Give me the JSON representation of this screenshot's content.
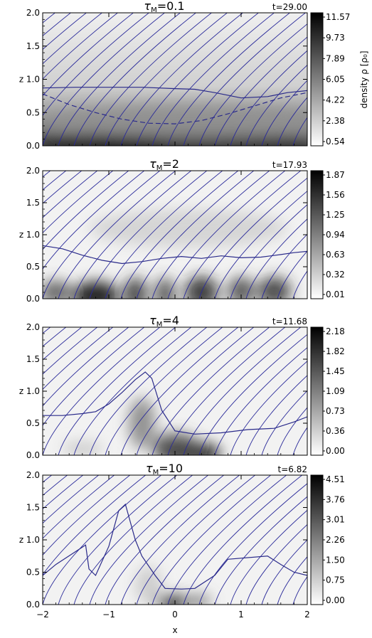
{
  "figure": {
    "x_label": "x",
    "y_label": "z",
    "colorbar_label": "density ρ [ρ₀]"
  },
  "panels": [
    {
      "title": "τ_M=0.1",
      "title_sym": "τ",
      "title_sub": "M",
      "title_val": "=0.1",
      "time": "t=29.00",
      "colorbar_ticks": [
        "11.57",
        "9.73",
        "7.89",
        "6.05",
        "4.22",
        "2.38",
        "0.54"
      ]
    },
    {
      "title": "τ_M=2",
      "title_sym": "τ",
      "title_sub": "M",
      "title_val": "=2",
      "time": "t=17.93",
      "colorbar_ticks": [
        "1.87",
        "1.56",
        "1.25",
        "0.94",
        "0.63",
        "0.32",
        "0.01"
      ]
    },
    {
      "title": "τ_M=4",
      "title_sym": "τ",
      "title_sub": "M",
      "title_val": "=4",
      "time": "t=11.68",
      "colorbar_ticks": [
        "2.18",
        "1.82",
        "1.45",
        "1.09",
        "0.73",
        "0.36",
        "0.00"
      ]
    },
    {
      "title": "τ_M=10",
      "title_sym": "τ",
      "title_sub": "M",
      "title_val": "=10",
      "time": "t=6.82",
      "colorbar_ticks": [
        "4.51",
        "3.76",
        "3.01",
        "2.26",
        "1.50",
        "0.75",
        "0.00"
      ]
    }
  ],
  "chart_data": {
    "type": "heatmap",
    "xlim": [
      -2,
      2
    ],
    "ylim": [
      0,
      2
    ],
    "x_ticks": [
      "−2",
      "−1",
      "0",
      "1",
      "2"
    ],
    "y_ticks": [
      "0.0",
      "0.5",
      "1.0",
      "1.5",
      "2.0"
    ],
    "x_tick_values": [
      -2,
      -1,
      0,
      1,
      2
    ],
    "y_tick_values": [
      0,
      0.5,
      1.0,
      1.5,
      2.0
    ],
    "colormap": "white-to-black",
    "field_line_color": "#2a2a9a",
    "panels": [
      {
        "solid_contour": [
          [
            -2,
            0.87
          ],
          [
            -1.5,
            0.88
          ],
          [
            -1,
            0.88
          ],
          [
            -0.5,
            0.88
          ],
          [
            0,
            0.86
          ],
          [
            0.3,
            0.85
          ],
          [
            0.6,
            0.8
          ],
          [
            1,
            0.72
          ],
          [
            1.4,
            0.74
          ],
          [
            1.7,
            0.8
          ],
          [
            2,
            0.83
          ]
        ],
        "dashed_contour": [
          [
            -2,
            0.78
          ],
          [
            -1.6,
            0.62
          ],
          [
            -1.2,
            0.5
          ],
          [
            -0.8,
            0.4
          ],
          [
            -0.4,
            0.34
          ],
          [
            0,
            0.33
          ],
          [
            0.4,
            0.38
          ],
          [
            0.8,
            0.48
          ],
          [
            1.2,
            0.6
          ],
          [
            1.6,
            0.72
          ],
          [
            2,
            0.8
          ]
        ]
      },
      {
        "solid_contour": [
          [
            -2,
            0.83
          ],
          [
            -1.7,
            0.78
          ],
          [
            -1.4,
            0.68
          ],
          [
            -1.1,
            0.6
          ],
          [
            -0.8,
            0.55
          ],
          [
            -0.5,
            0.58
          ],
          [
            -0.2,
            0.63
          ],
          [
            0.1,
            0.66
          ],
          [
            0.4,
            0.63
          ],
          [
            0.7,
            0.67
          ],
          [
            1,
            0.64
          ],
          [
            1.3,
            0.65
          ],
          [
            1.6,
            0.69
          ],
          [
            1.8,
            0.72
          ],
          [
            2,
            0.74
          ]
        ]
      },
      {
        "solid_contour": [
          [
            -2,
            0.62
          ],
          [
            -1.7,
            0.62
          ],
          [
            -1.4,
            0.65
          ],
          [
            -1.2,
            0.68
          ],
          [
            -1,
            0.8
          ],
          [
            -0.8,
            0.98
          ],
          [
            -0.6,
            1.18
          ],
          [
            -0.45,
            1.3
          ],
          [
            -0.35,
            1.2
          ],
          [
            -0.2,
            0.7
          ],
          [
            0,
            0.38
          ],
          [
            0.3,
            0.33
          ],
          [
            0.7,
            0.35
          ],
          [
            1.1,
            0.4
          ],
          [
            1.5,
            0.42
          ],
          [
            1.8,
            0.52
          ],
          [
            2,
            0.6
          ]
        ]
      },
      {
        "solid_contour": [
          [
            -2,
            0.45
          ],
          [
            -1.8,
            0.62
          ],
          [
            -1.5,
            0.82
          ],
          [
            -1.35,
            0.92
          ],
          [
            -1.3,
            0.55
          ],
          [
            -1.2,
            0.45
          ],
          [
            -1.0,
            0.9
          ],
          [
            -0.85,
            1.45
          ],
          [
            -0.75,
            1.55
          ],
          [
            -0.6,
            1.0
          ],
          [
            -0.5,
            0.75
          ],
          [
            -0.3,
            0.45
          ],
          [
            -0.15,
            0.25
          ],
          [
            0.1,
            0.24
          ],
          [
            0.3,
            0.25
          ],
          [
            0.6,
            0.45
          ],
          [
            0.8,
            0.7
          ],
          [
            1.4,
            0.75
          ],
          [
            1.6,
            0.62
          ],
          [
            1.8,
            0.5
          ],
          [
            2,
            0.45
          ]
        ]
      }
    ]
  }
}
